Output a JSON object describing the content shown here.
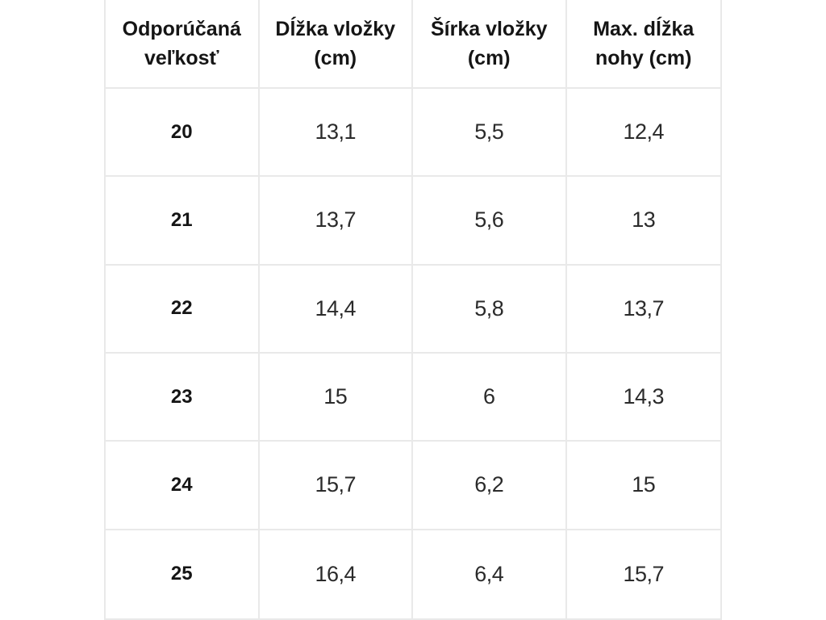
{
  "colors": {
    "background": "#ffffff",
    "border": "#e9e9e9",
    "header_text": "#151515",
    "value_text": "#2b2b2b"
  },
  "table": {
    "headers": [
      "Odporúčaná veľkosť",
      "Dĺžka vložky (cm)",
      "Šírka vložky (cm)",
      "Max. dĺžka nohy (cm)"
    ],
    "rows": [
      [
        "20",
        "13,1",
        "5,5",
        "12,4"
      ],
      [
        "21",
        "13,7",
        "5,6",
        "13"
      ],
      [
        "22",
        "14,4",
        "5,8",
        "13,7"
      ],
      [
        "23",
        "15",
        "6",
        "14,3"
      ],
      [
        "24",
        "15,7",
        "6,2",
        "15"
      ],
      [
        "25",
        "16,4",
        "6,4",
        "15,7"
      ]
    ]
  },
  "chart_data": {
    "type": "table",
    "title": "",
    "columns": [
      "Odporúčaná veľkosť",
      "Dĺžka vložky (cm)",
      "Šírka vložky (cm)",
      "Max. dĺžka nohy (cm)"
    ],
    "rows": [
      [
        "20",
        "13,1",
        "5,5",
        "12,4"
      ],
      [
        "21",
        "13,7",
        "5,6",
        "13"
      ],
      [
        "22",
        "14,4",
        "5,8",
        "13,7"
      ],
      [
        "23",
        "15",
        "6",
        "14,3"
      ],
      [
        "24",
        "15,7",
        "6,2",
        "15"
      ],
      [
        "25",
        "16,4",
        "6,4",
        "15,7"
      ]
    ]
  }
}
